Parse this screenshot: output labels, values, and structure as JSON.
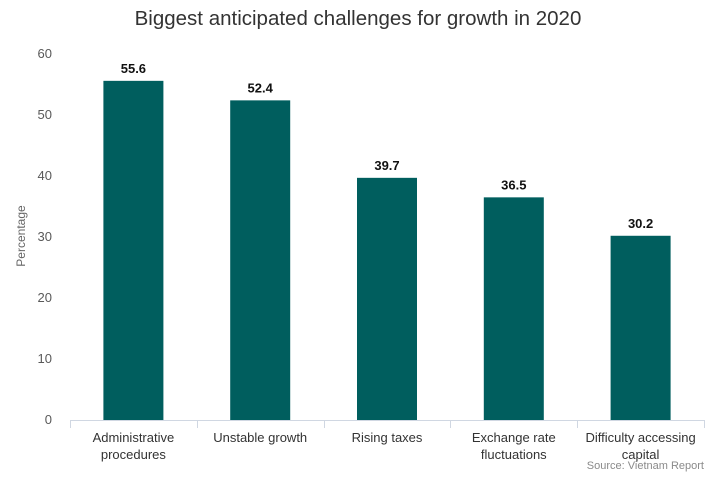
{
  "chart_data": {
    "type": "bar",
    "title": "Biggest anticipated challenges for growth in 2020",
    "xlabel": "",
    "ylabel": "Percentage",
    "ylim": [
      0,
      60
    ],
    "yticks": [
      0,
      10,
      20,
      30,
      40,
      50,
      60
    ],
    "categories": [
      [
        "Administrative",
        "procedures"
      ],
      [
        "Unstable growth"
      ],
      [
        "Rising taxes"
      ],
      [
        "Exchange rate",
        "fluctuations"
      ],
      [
        "Difficulty accessing",
        "capital"
      ]
    ],
    "values": [
      55.6,
      52.4,
      39.7,
      36.5,
      30.2
    ],
    "data_labels": [
      "55.6",
      "52.4",
      "39.7",
      "36.5",
      "30.2"
    ],
    "grid": false,
    "legend": "none",
    "bar_color": "#005e5e",
    "source": "Source: Vietnam Report"
  }
}
